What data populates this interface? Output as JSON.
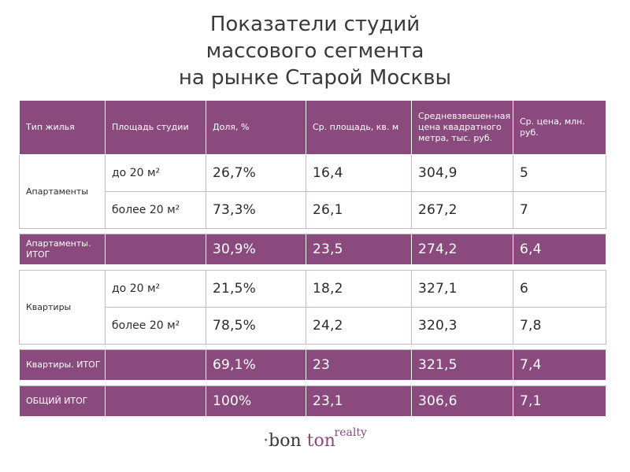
{
  "title": {
    "line1": "Показатели студий",
    "line2": "массового сегмента",
    "line3": "на рынке Старой Москвы"
  },
  "table": {
    "headers": [
      "Тип жилья",
      "Площадь студии",
      "Доля, %",
      "Ср. площадь, кв. м",
      "Средневзвешен-ная цена квадратного метра, тыс. руб.",
      "Ср. цена, млн. руб."
    ],
    "groups": [
      {
        "type": "Апартаменты",
        "rows": [
          {
            "area": "до 20 м²",
            "share": "26,7%",
            "avg_area": "16,4",
            "price_sqm": "304,9",
            "avg_price": "5"
          },
          {
            "area": "более 20 м²",
            "share": "73,3%",
            "avg_area": "26,1",
            "price_sqm": "267,2",
            "avg_price": "7"
          }
        ],
        "total": {
          "label": "Апартаменты. ИТОГ",
          "share": "30,9%",
          "avg_area": "23,5",
          "price_sqm": "274,2",
          "avg_price": "6,4"
        }
      },
      {
        "type": "Квартиры",
        "rows": [
          {
            "area": "до 20 м²",
            "share": "21,5%",
            "avg_area": "18,2",
            "price_sqm": "327,1",
            "avg_price": "6"
          },
          {
            "area": "более 20 м²",
            "share": "78,5%",
            "avg_area": "24,2",
            "price_sqm": "320,3",
            "avg_price": "7,8"
          }
        ],
        "total": {
          "label": "Квартиры. ИТОГ",
          "share": "69,1%",
          "avg_area": "23",
          "price_sqm": "321,5",
          "avg_price": "7,4"
        }
      }
    ],
    "grand_total": {
      "label": "ОБЩИЙ ИТОГ",
      "share": "100%",
      "avg_area": "23,1",
      "price_sqm": "306,6",
      "avg_price": "7,1"
    }
  },
  "logo": {
    "dot": "·",
    "bon": "bon ",
    "ton": "ton",
    "realty": "realty"
  },
  "colors": {
    "accent": "#8a4a7d",
    "text": "#3a3a3a"
  }
}
